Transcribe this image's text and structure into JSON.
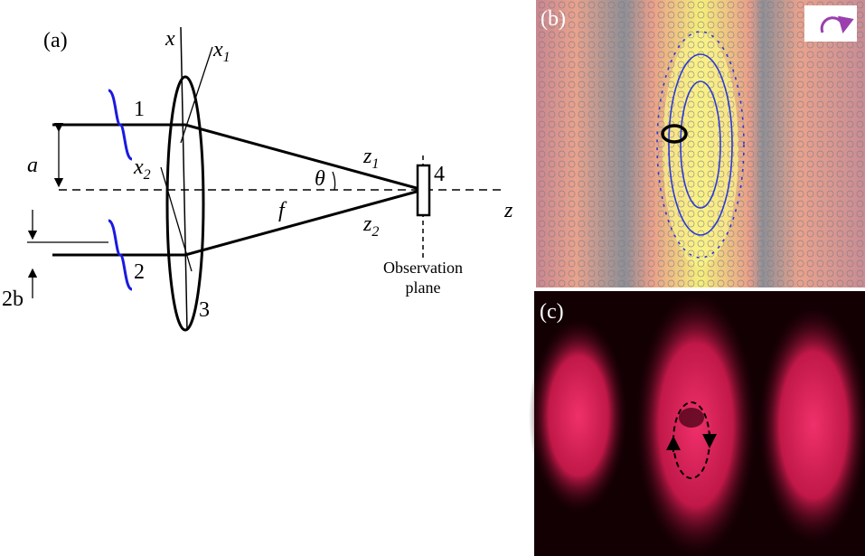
{
  "panel_a": {
    "label": "(a)",
    "axis_x": "x",
    "x1": {
      "base": "x",
      "sub": "1"
    },
    "x2": {
      "base": "x",
      "sub": "2"
    },
    "z1": {
      "base": "z",
      "sub": "1"
    },
    "z2": {
      "base": "z",
      "sub": "2"
    },
    "axis_z": "z",
    "beam1": "1",
    "beam2": "2",
    "lens": "3",
    "detector": "4",
    "half_separation": "a",
    "angle": "θ",
    "focal_length": "f",
    "beam_width": "2b",
    "observation_plane": [
      "Observation",
      "plane"
    ]
  },
  "panel_b": {
    "label": "(b)"
  },
  "panel_c": {
    "label": "(c)"
  }
}
